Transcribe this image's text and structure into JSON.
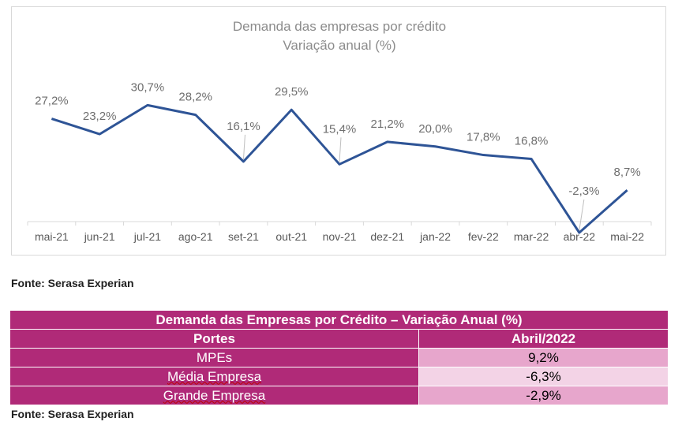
{
  "chart": {
    "title_line1": "Demanda das empresas por crédito",
    "title_line2": "Variação anual (%)"
  },
  "chart_data": {
    "type": "line",
    "title": "Demanda das empresas por crédito Variação anual (%)",
    "categories": [
      "mai-21",
      "jun-21",
      "jul-21",
      "ago-21",
      "set-21",
      "out-21",
      "nov-21",
      "dez-21",
      "jan-22",
      "fev-22",
      "mar-22",
      "abr-22",
      "mai-22"
    ],
    "values": [
      27.2,
      23.2,
      30.7,
      28.2,
      16.1,
      29.5,
      15.4,
      21.2,
      20.0,
      17.8,
      16.8,
      -2.3,
      8.7
    ],
    "data_labels": [
      "27,2%",
      "23,2%",
      "30,7%",
      "28,2%",
      "16,1%",
      "29,5%",
      "15,4%",
      "21,2%",
      "20,0%",
      "17,8%",
      "16,8%",
      "-2,3%",
      "8,7%"
    ],
    "ylim": [
      -2.3,
      32
    ],
    "grid": false,
    "line_color": "#2e5496"
  },
  "source1": "Fonte: Serasa Experian",
  "table": {
    "title": "Demanda das Empresas por Crédito – Variação Anual (%)",
    "col1": "Portes",
    "col2": "Abril/2022",
    "rows": [
      {
        "label": "MPEs",
        "value": "9,2%"
      },
      {
        "label": "Média Empresa",
        "value": "-6,3%"
      },
      {
        "label": "Grande Empresa",
        "value": "-2,9%"
      }
    ]
  },
  "source2": "Fonte: Serasa Experian",
  "colors": {
    "table_header": "#b02a78",
    "cell_dark": "#e7a6cc",
    "cell_light": "#f3d3e6"
  }
}
